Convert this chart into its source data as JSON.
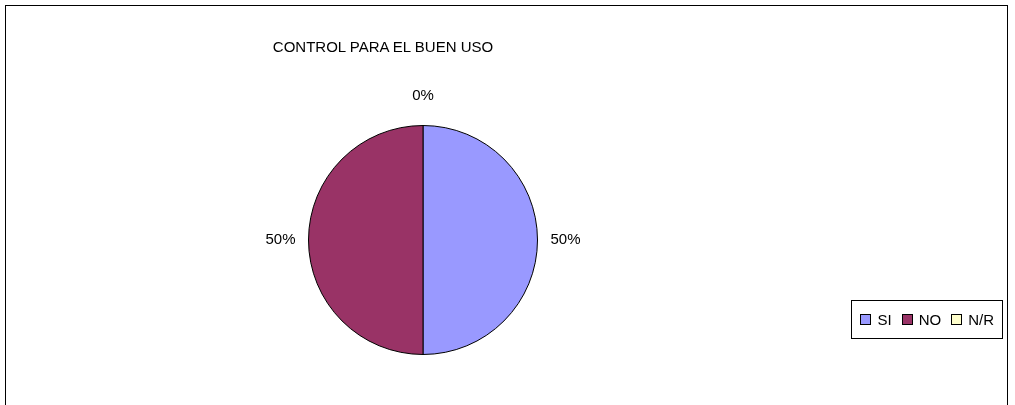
{
  "chart_data": {
    "type": "pie",
    "title": "CONTROL PARA EL BUEN USO",
    "categories": [
      "SI",
      "NO",
      "N/R"
    ],
    "values": [
      50,
      50,
      0
    ],
    "colors": [
      "#9999ff",
      "#993366",
      "#ffffcc"
    ],
    "value_labels": [
      "50%",
      "50%",
      "0%"
    ],
    "legend": "bottom right"
  }
}
